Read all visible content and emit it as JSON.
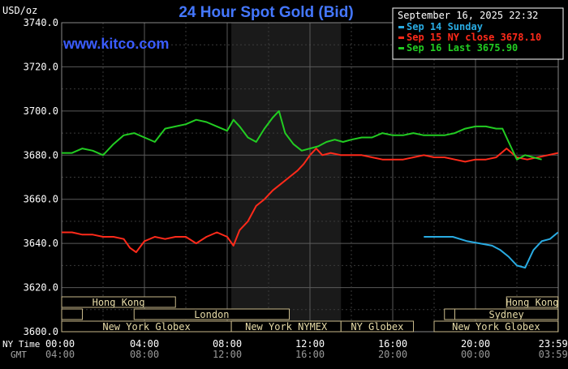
{
  "header": {
    "title": "24 Hour Spot Gold (Bid)",
    "units": "USD/oz",
    "timestamp": "September 16, 2025 22:32",
    "watermark": "www.kitco.com"
  },
  "legend": [
    {
      "label": "Sep 14 Sunday",
      "color": "#29abe2"
    },
    {
      "label": "Sep 15 NY close 3678.10",
      "color": "#ff2a1a"
    },
    {
      "label": "Sep 16 Last 3675.90",
      "color": "#22cc22"
    }
  ],
  "axis": {
    "ny_label": "NY Time",
    "gmt_label": "GMT",
    "y_ticks": [
      "3740.0",
      "3720.0",
      "3700.0",
      "3680.0",
      "3660.0",
      "3640.0",
      "3620.0",
      "3600.0"
    ],
    "x_ticks_ny": [
      "00:00",
      "04:00",
      "08:00",
      "12:00",
      "16:00",
      "20:00",
      "23:59"
    ],
    "x_ticks_gmt": [
      "04:00",
      "08:00",
      "12:00",
      "16:00",
      "20:00",
      "00:00",
      "03:59"
    ]
  },
  "sessions": [
    {
      "label": "Hong Kong",
      "row": 0,
      "start": 0,
      "end": 5.5
    },
    {
      "label": "",
      "row": 1,
      "start": 0,
      "end": 1
    },
    {
      "label": "London",
      "row": 1,
      "start": 3.5,
      "end": 11
    },
    {
      "label": "New York Globex",
      "row": 2,
      "start": 0,
      "end": 8.2
    },
    {
      "label": "New York NYMEX",
      "row": 2,
      "start": 8.2,
      "end": 13.5
    },
    {
      "label": "NY Globex",
      "row": 2,
      "start": 13.5,
      "end": 17
    },
    {
      "label": "Hong Kong",
      "row": 0,
      "start": 21.5,
      "end": 23.99
    },
    {
      "label": "",
      "row": 1,
      "start": 18.5,
      "end": 19
    },
    {
      "label": "Sydney",
      "row": 1,
      "start": 19,
      "end": 23.99
    },
    {
      "label": "New York Globex",
      "row": 2,
      "start": 18,
      "end": 23.99
    }
  ],
  "chart_data": {
    "type": "line",
    "title": "24 Hour Spot Gold (Bid)",
    "xlabel": "NY Time",
    "ylabel": "USD/oz",
    "ylim": [
      3600,
      3740
    ],
    "xlim_hours": [
      0,
      24
    ],
    "nymex_shade_hours": [
      8.2,
      13.5
    ],
    "grid": true,
    "series": [
      {
        "name": "Sep 14 Sunday",
        "color": "#29abe2",
        "x": [
          17.5,
          18.2,
          18.9,
          19.6,
          20.2,
          20.8,
          21.2,
          21.6,
          22.0,
          22.4,
          22.8,
          23.2,
          23.6,
          23.99
        ],
        "y": [
          3643,
          3643,
          3643,
          3641,
          3640,
          3639,
          3637,
          3634,
          3630,
          3629,
          3637,
          3641,
          3642,
          3645
        ]
      },
      {
        "name": "Sep 15 NY close 3678.10",
        "color": "#ff2a1a",
        "x": [
          0,
          0.5,
          1.0,
          1.5,
          2.0,
          2.5,
          3.0,
          3.3,
          3.6,
          4.0,
          4.5,
          5.0,
          5.5,
          6.0,
          6.5,
          7.0,
          7.5,
          8.0,
          8.3,
          8.6,
          9.0,
          9.4,
          9.8,
          10.2,
          10.6,
          11.0,
          11.4,
          11.7,
          12.0,
          12.3,
          12.6,
          13.0,
          13.5,
          14.0,
          14.5,
          15.0,
          15.5,
          16.0,
          16.5,
          17.0,
          17.5,
          18.0,
          18.5,
          19.0,
          19.5,
          20.0,
          20.5,
          21.0,
          21.5,
          22.0,
          22.5,
          23.0,
          23.5,
          23.99
        ],
        "y": [
          3645,
          3645,
          3644,
          3644,
          3643,
          3643,
          3642,
          3638,
          3636,
          3641,
          3643,
          3642,
          3643,
          3643,
          3640,
          3643,
          3645,
          3643,
          3639,
          3646,
          3650,
          3657,
          3660,
          3664,
          3667,
          3670,
          3673,
          3676,
          3680,
          3683,
          3680,
          3681,
          3680,
          3680,
          3680,
          3679,
          3678,
          3678,
          3678,
          3679,
          3680,
          3679,
          3679,
          3678,
          3677,
          3678,
          3678,
          3679,
          3683,
          3679,
          3678,
          3679,
          3680,
          3681
        ]
      },
      {
        "name": "Sep 16 Last 3675.90",
        "color": "#22cc22",
        "x": [
          0,
          0.5,
          1.0,
          1.5,
          2.0,
          2.5,
          3.0,
          3.5,
          4.0,
          4.5,
          5.0,
          5.5,
          6.0,
          6.5,
          7.0,
          7.5,
          8.0,
          8.3,
          8.6,
          9.0,
          9.4,
          9.8,
          10.2,
          10.5,
          10.8,
          11.2,
          11.6,
          12.0,
          12.4,
          12.8,
          13.2,
          13.6,
          14.0,
          14.5,
          15.0,
          15.5,
          16.0,
          16.5,
          17.0,
          17.5,
          18.0,
          18.5,
          19.0,
          19.5,
          20.0,
          20.5,
          21.0,
          21.3,
          21.6,
          22.0,
          22.4,
          22.8,
          23.2
        ],
        "y": [
          3681,
          3681,
          3683,
          3682,
          3680,
          3685,
          3689,
          3690,
          3688,
          3686,
          3692,
          3693,
          3694,
          3696,
          3695,
          3693,
          3691,
          3696,
          3693,
          3688,
          3686,
          3692,
          3697,
          3700,
          3690,
          3685,
          3682,
          3683,
          3684,
          3686,
          3687,
          3686,
          3687,
          3688,
          3688,
          3690,
          3689,
          3689,
          3690,
          3689,
          3689,
          3689,
          3690,
          3692,
          3693,
          3693,
          3692,
          3692,
          3686,
          3678,
          3680,
          3679,
          3678
        ]
      }
    ]
  }
}
